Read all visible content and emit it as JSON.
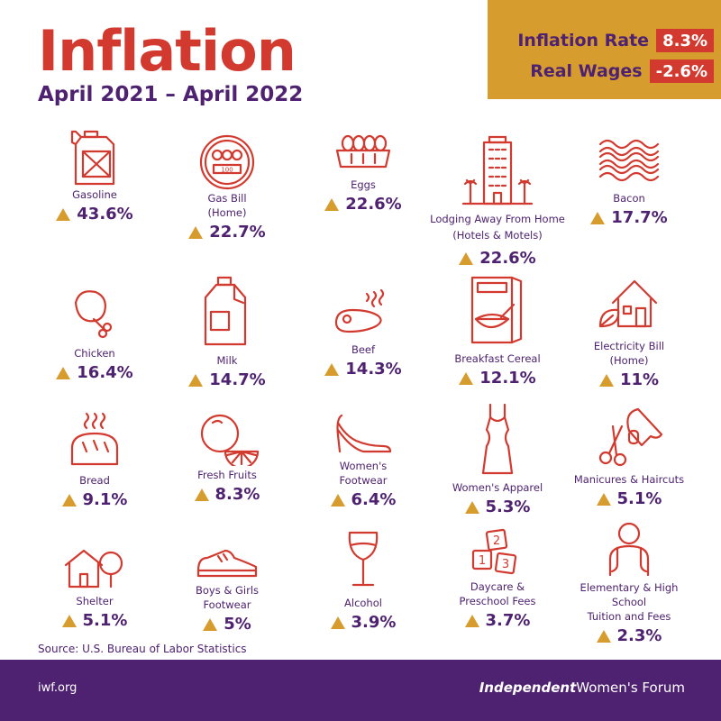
{
  "title": "Inflation",
  "subtitle": "April 2021 – April 2022",
  "stats": [
    {
      "label": "Inflation Rate",
      "value": "8.3%"
    },
    {
      "label": "Real Wages",
      "value": "-2.6%"
    }
  ],
  "items": [
    {
      "label": "Gasoline",
      "value": "43.6%",
      "icon": "gas-can-icon"
    },
    {
      "label": "Gas Bill\n(Home)",
      "value": "22.7%",
      "icon": "gas-meter-icon"
    },
    {
      "label": "Eggs",
      "value": "22.6%",
      "icon": "eggs-icon"
    },
    {
      "label": "Lodging Away From Home\n(Hotels & Motels)",
      "value": "22.6%",
      "icon": "hotel-icon"
    },
    {
      "label": "Bacon",
      "value": "17.7%",
      "icon": "bacon-icon"
    },
    {
      "label": "Chicken",
      "value": "16.4%",
      "icon": "chicken-leg-icon"
    },
    {
      "label": "Milk",
      "value": "14.7%",
      "icon": "milk-jug-icon"
    },
    {
      "label": "Beef",
      "value": "14.3%",
      "icon": "steak-icon"
    },
    {
      "label": "Breakfast Cereal",
      "value": "12.1%",
      "icon": "cereal-box-icon"
    },
    {
      "label": "Electricity Bill\n(Home)",
      "value": "11%",
      "icon": "green-house-icon"
    },
    {
      "label": "Bread",
      "value": "9.1%",
      "icon": "bread-icon"
    },
    {
      "label": "Fresh Fruits",
      "value": "8.3%",
      "icon": "citrus-icon"
    },
    {
      "label": "Women's\nFootwear",
      "value": "6.4%",
      "icon": "high-heel-icon"
    },
    {
      "label": "Women's Apparel",
      "value": "5.3%",
      "icon": "dress-icon"
    },
    {
      "label": "Manicures & Haircuts",
      "value": "5.1%",
      "icon": "scissors-nail-icon"
    },
    {
      "label": "Shelter",
      "value": "5.1%",
      "icon": "house-tree-icon"
    },
    {
      "label": "Boys & Girls\nFootwear",
      "value": "5%",
      "icon": "sneaker-icon"
    },
    {
      "label": "Alcohol",
      "value": "3.9%",
      "icon": "wine-glass-icon"
    },
    {
      "label": "Daycare &\nPreschool Fees",
      "value": "3.7%",
      "icon": "blocks-icon"
    },
    {
      "label": "Elementary & High School\nTuition and Fees",
      "value": "2.3%",
      "icon": "student-icon"
    }
  ],
  "source": "Source: U.S. Bureau of Labor Statistics",
  "footer": {
    "url": "iwf.org",
    "logo_bold": "Independent",
    "logo_rest": "Women's Forum"
  },
  "colors": {
    "red": "#d33a2f",
    "purple": "#4e2270",
    "gold": "#d79c2e"
  }
}
